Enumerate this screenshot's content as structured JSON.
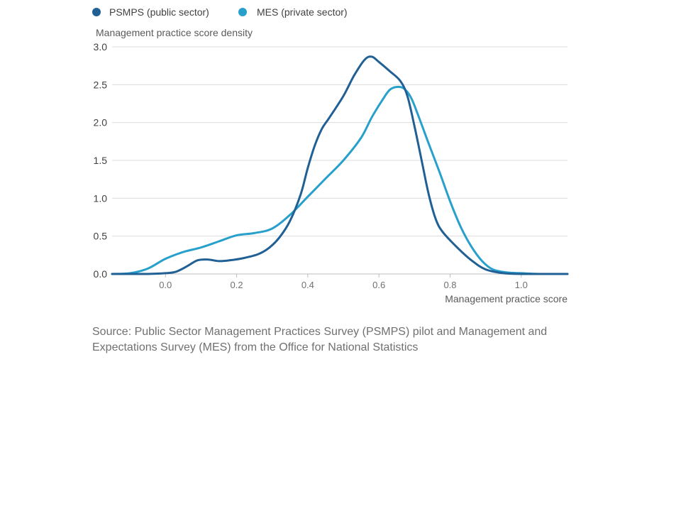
{
  "source_text": "Source: Public Sector Management Practices Survey (PSMPS) pilot and Management and Expectations Survey (MES) from the Office for National Statistics",
  "chart_data": {
    "type": "line",
    "title": "",
    "ylabel": "Management practice score density",
    "xlabel": "Management practice score",
    "xlim": [
      -0.15,
      1.13
    ],
    "ylim": [
      0,
      3.0
    ],
    "x_ticks": [
      0.0,
      0.2,
      0.4,
      0.6,
      0.8,
      1.0
    ],
    "x_tick_labels": [
      "0.0",
      "0.2",
      "0.4",
      "0.6",
      "0.8",
      "1.0"
    ],
    "y_ticks": [
      0.0,
      0.5,
      1.0,
      1.5,
      2.0,
      2.5,
      3.0
    ],
    "y_tick_labels": [
      "0.0",
      "0.5",
      "1.0",
      "1.5",
      "2.0",
      "2.5",
      "3.0"
    ],
    "grid": "horizontal",
    "legend_position": "top-left",
    "series": [
      {
        "name": "PSMPS (public sector)",
        "color": "#206095",
        "x": [
          -0.15,
          -0.1,
          -0.05,
          0.0,
          0.03,
          0.06,
          0.09,
          0.12,
          0.15,
          0.18,
          0.22,
          0.26,
          0.29,
          0.32,
          0.35,
          0.38,
          0.4,
          0.42,
          0.44,
          0.46,
          0.5,
          0.53,
          0.56,
          0.58,
          0.6,
          0.63,
          0.66,
          0.68,
          0.7,
          0.72,
          0.74,
          0.76,
          0.78,
          0.82,
          0.86,
          0.9,
          0.95,
          1.0,
          1.05,
          1.13
        ],
        "y": [
          0.0,
          0.0,
          0.0,
          0.01,
          0.03,
          0.1,
          0.18,
          0.19,
          0.17,
          0.18,
          0.21,
          0.26,
          0.34,
          0.48,
          0.7,
          1.05,
          1.4,
          1.7,
          1.92,
          2.06,
          2.35,
          2.62,
          2.83,
          2.87,
          2.8,
          2.68,
          2.55,
          2.35,
          1.95,
          1.5,
          1.05,
          0.72,
          0.55,
          0.35,
          0.18,
          0.06,
          0.01,
          0.0,
          0.0,
          0.0
        ]
      },
      {
        "name": "MES (private sector)",
        "color": "#27a0cc",
        "x": [
          -0.15,
          -0.1,
          -0.05,
          0.0,
          0.05,
          0.1,
          0.15,
          0.2,
          0.25,
          0.3,
          0.35,
          0.4,
          0.45,
          0.5,
          0.55,
          0.58,
          0.61,
          0.63,
          0.65,
          0.67,
          0.69,
          0.71,
          0.74,
          0.77,
          0.8,
          0.83,
          0.86,
          0.89,
          0.92,
          0.96,
          1.0,
          1.05,
          1.13
        ],
        "y": [
          0.0,
          0.01,
          0.07,
          0.2,
          0.29,
          0.35,
          0.43,
          0.51,
          0.54,
          0.6,
          0.78,
          1.02,
          1.26,
          1.5,
          1.8,
          2.07,
          2.3,
          2.43,
          2.47,
          2.45,
          2.33,
          2.1,
          1.72,
          1.35,
          0.96,
          0.62,
          0.36,
          0.17,
          0.06,
          0.02,
          0.01,
          0.0,
          0.0
        ]
      }
    ]
  }
}
